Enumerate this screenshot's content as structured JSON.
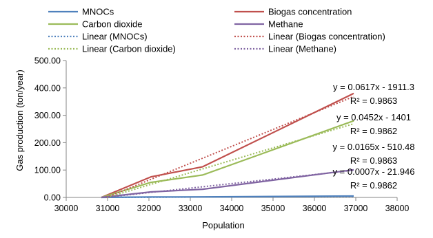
{
  "chart_data": {
    "type": "line",
    "xlabel": "Population",
    "ylabel": "Gas production (ton/year)",
    "xlim": [
      30000,
      38000
    ],
    "ylim": [
      0,
      500
    ],
    "xticks": [
      30000,
      31000,
      32000,
      33000,
      34000,
      35000,
      36000,
      37000,
      38000
    ],
    "xtick_labels": [
      "30000",
      "31000",
      "32000",
      "33000",
      "34000",
      "35000",
      "36000",
      "37000",
      "38000"
    ],
    "yticks": [
      0,
      100,
      200,
      300,
      400,
      500
    ],
    "ytick_labels": [
      "0.00",
      "100.00",
      "200.00",
      "300.00",
      "400.00",
      "500.00"
    ],
    "grid": false,
    "legend_position": "top",
    "x": [
      30850,
      32050,
      33300,
      36950
    ],
    "series": [
      {
        "name": "MNOCs",
        "color": "#4F81BD",
        "values": [
          0,
          1.5,
          2,
          5
        ]
      },
      {
        "name": "Biogas concentration",
        "color": "#C0504D",
        "values": [
          0,
          75,
          112,
          380
        ]
      },
      {
        "name": "Carbon dioxide",
        "color": "#9BBB59",
        "values": [
          0,
          55,
          82,
          280
        ]
      },
      {
        "name": "Methane",
        "color": "#8064A2",
        "values": [
          0,
          20,
          30,
          101
        ]
      }
    ],
    "trendlines": [
      {
        "name": "Linear (MNOCs)",
        "series": "MNOCs",
        "slope": 0.0007,
        "intercept": -21.946,
        "color": "#4F81BD"
      },
      {
        "name": "Linear (Biogas concentration)",
        "series": "Biogas concentration",
        "slope": 0.0617,
        "intercept": -1911.3,
        "color": "#C0504D"
      },
      {
        "name": "Linear (Carbon dioxide)",
        "series": "Carbon dioxide",
        "slope": 0.0452,
        "intercept": -1401,
        "color": "#9BBB59"
      },
      {
        "name": "Linear (Methane)",
        "series": "Methane",
        "slope": 0.0165,
        "intercept": -510.48,
        "color": "#8064A2"
      }
    ],
    "annotations": [
      {
        "series": "Biogas concentration",
        "equation": "y = 0.0617x - 1911.3",
        "r2": "R² = 0.9863"
      },
      {
        "series": "Carbon dioxide",
        "equation": "y = 0.0452x - 1401",
        "r2": "R² = 0.9862"
      },
      {
        "series": "Methane",
        "equation": "y = 0.0165x - 510.48",
        "r2": "R² = 0.9863"
      },
      {
        "series": "MNOCs",
        "equation": "y = 0.0007x - 21.946",
        "r2": "R² = 0.9862"
      }
    ]
  }
}
